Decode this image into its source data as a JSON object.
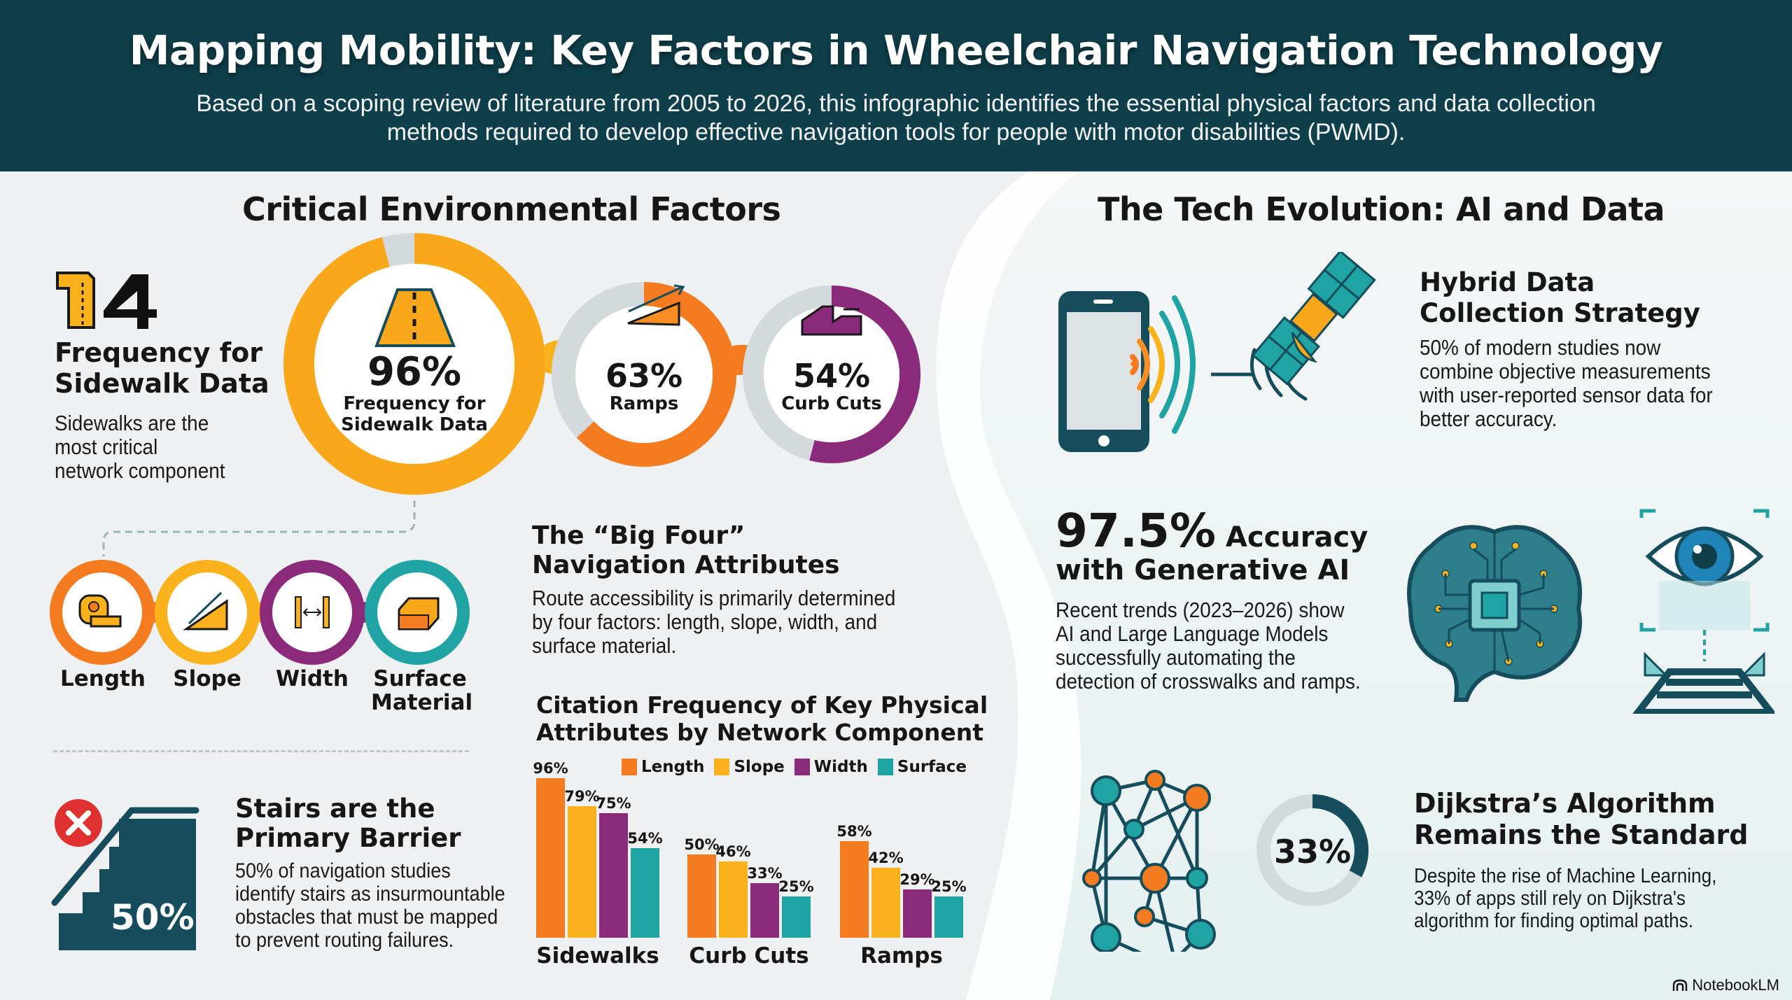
{
  "header": {
    "title": "Mapping Mobility: Key Factors in Wheelchair Navigation Technology",
    "subtitle": "Based on a scoping review of literature from 2005 to 2026, this infographic identifies the essential physical factors and data collection methods required to develop effective navigation tools for people with motor disabilities (PWMD)."
  },
  "colors": {
    "header_bg": "#0f3f4a",
    "orange": "#f47b20",
    "amber": "#f9b21b",
    "purple": "#8b2a7a",
    "teal": "#1fa3a3",
    "dark_teal": "#154d5c",
    "gray_track": "#d4dadc",
    "red": "#e03131"
  },
  "left": {
    "section_title": "Critical Environmental Factors",
    "sidewalk_stat": {
      "icon": "road-sign-icon",
      "number": "4",
      "title_line1": "Frequency for",
      "title_line2": "Sidewalk Data",
      "desc_line1": "Sidewalks are the",
      "desc_line2": "most critical",
      "desc_line3": "network component"
    },
    "rings": [
      {
        "value": "96%",
        "label_line1": "Frequency for",
        "label_line2": "Sidewalk Data",
        "icon": "road-icon",
        "percent": 96
      },
      {
        "value": "63%",
        "label_line1": "Ramps",
        "label_line2": "",
        "icon": "ramp-icon",
        "percent": 63
      },
      {
        "value": "54%",
        "label_line1": "Curb Cuts",
        "label_line2": "",
        "icon": "curb-cut-icon",
        "percent": 54
      }
    ],
    "big_four": {
      "title_line1": "The “Big Four”",
      "title_line2": "Navigation Attributes",
      "desc_line1": "Route accessibility is primarily determined",
      "desc_line2": "by four factors: length, slope, width, and",
      "desc_line3": "surface material.",
      "attributes": [
        {
          "label": "Length",
          "icon": "tape-measure-icon"
        },
        {
          "label": "Slope",
          "icon": "slope-icon"
        },
        {
          "label": "Width",
          "icon": "width-arrows-icon"
        },
        {
          "label_line1": "Surface",
          "label_line2": "Material",
          "icon": "surface-brick-icon"
        }
      ]
    },
    "stairs": {
      "value": "50%",
      "title_line1": "Stairs are the",
      "title_line2": "Primary Barrier",
      "desc_line1": "50% of navigation studies",
      "desc_line2": "identify stairs as insurmountable",
      "desc_line3": "obstacles that must be mapped",
      "desc_line4": "to prevent routing failures."
    }
  },
  "chart_data": {
    "type": "bar",
    "title": "Citation Frequency of Key Physical Attributes by Network Component",
    "title_line1": "Citation Frequency of Key Physical",
    "title_line2": "Attributes by Network Component",
    "categories": [
      "Sidewalks",
      "Curb Cuts",
      "Ramps"
    ],
    "series": [
      {
        "name": "Length",
        "color": "#f47b20",
        "values": [
          96,
          50,
          58
        ],
        "labels": [
          "96%",
          "50%",
          "58%"
        ]
      },
      {
        "name": "Slope",
        "color": "#f9b21b",
        "values": [
          79,
          46,
          42
        ],
        "labels": [
          "79%",
          "46%",
          "42%"
        ]
      },
      {
        "name": "Width",
        "color": "#8b2a7a",
        "values": [
          75,
          33,
          29
        ],
        "labels": [
          "75%",
          "33%",
          "29%"
        ]
      },
      {
        "name": "Surface",
        "color": "#1fa3a3",
        "values": [
          54,
          25,
          25
        ],
        "labels": [
          "54%",
          "25%",
          "25%"
        ]
      }
    ],
    "xlabel": "",
    "ylabel": "",
    "ylim": [
      0,
      100
    ],
    "grid": false,
    "legend_position": "top-right"
  },
  "right": {
    "section_title": "The Tech Evolution: AI and Data",
    "hybrid": {
      "title_line1": "Hybrid Data",
      "title_line2": "Collection Strategy",
      "desc_line1": "50% of modern studies now",
      "desc_line2": "combine objective measurements",
      "desc_line3": "with user-reported sensor data for",
      "desc_line4": "better accuracy."
    },
    "genai": {
      "big_value": "97.5%",
      "title_rest": " Accuracy",
      "title_line2": "with Generative AI",
      "desc_line1": "Recent trends (2023–2026) show",
      "desc_line2": "AI and Large Language Models",
      "desc_line3": "successfully automating the",
      "desc_line4": "detection of crosswalks and ramps."
    },
    "dijkstra": {
      "value": "33%",
      "percent": 33,
      "title_line1": "Dijkstra’s Algorithm",
      "title_line2": "Remains the Standard",
      "desc_line1": "Despite the rise of Machine Learning,",
      "desc_line2": "33% of apps still rely on Dijkstra's",
      "desc_line3": "algorithm for finding optimal paths."
    }
  },
  "footer": {
    "brand": "NotebookLM"
  }
}
